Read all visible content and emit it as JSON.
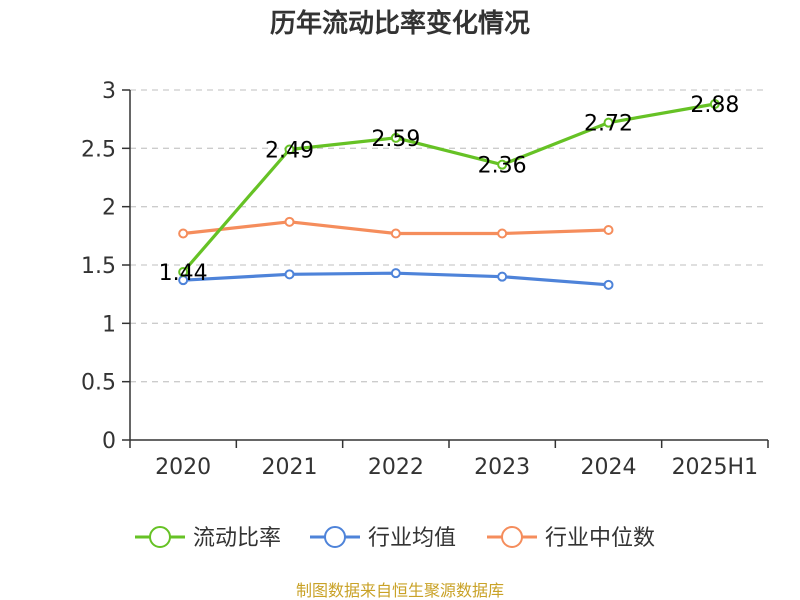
{
  "chart_data": {
    "type": "line",
    "title": "历年流动比率变化情况",
    "categories": [
      "2020",
      "2021",
      "2022",
      "2023",
      "2024",
      "2025H1"
    ],
    "ylim": [
      0,
      3
    ],
    "yticks": [
      "0",
      "0.5",
      "1",
      "1.5",
      "2",
      "2.5",
      "3"
    ],
    "grid": true,
    "legend_position": "bottom",
    "series": [
      {
        "name": "流动比率",
        "color": "#66c225",
        "values": [
          1.44,
          2.49,
          2.59,
          2.36,
          2.72,
          2.88
        ],
        "labels": [
          "1.44",
          "2.49",
          "2.59",
          "2.36",
          "2.72",
          "2.88"
        ]
      },
      {
        "name": "行业均值",
        "color": "#4e83d9",
        "values": [
          1.37,
          1.42,
          1.43,
          1.4,
          1.33,
          null
        ]
      },
      {
        "name": "行业中位数",
        "color": "#f58d5c",
        "values": [
          1.77,
          1.87,
          1.77,
          1.77,
          1.8,
          null
        ]
      }
    ]
  },
  "source": "制图数据来自恒生聚源数据库"
}
